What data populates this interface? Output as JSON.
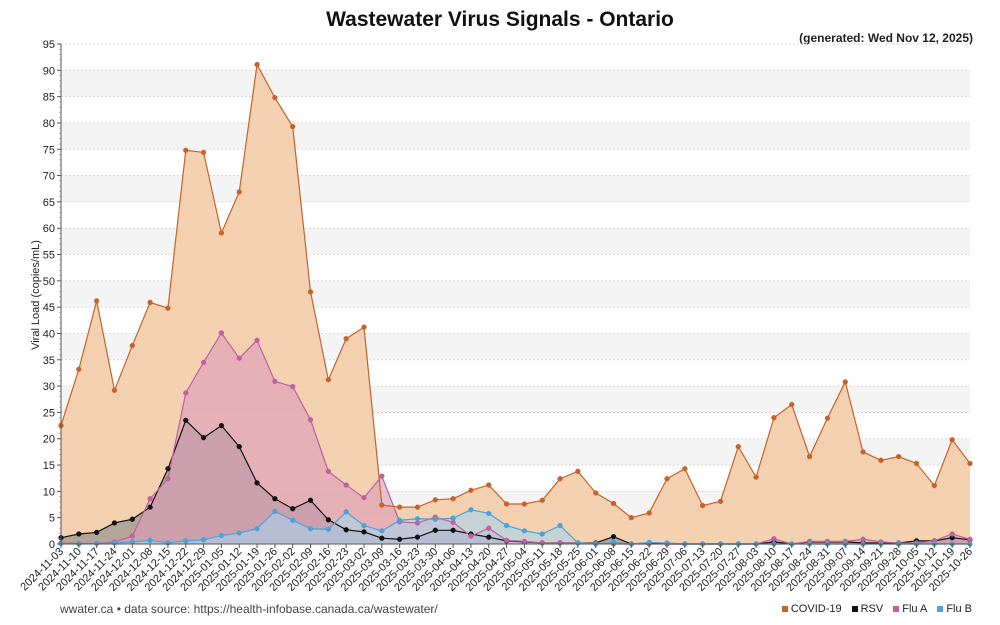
{
  "chart_data": {
    "type": "area",
    "title": "Wastewater Virus Signals - Ontario",
    "generated": "(generated: Wed Nov 12, 2025)",
    "xlabel": "",
    "ylabel": "Viral Load (copies/mL)",
    "ylim": [
      0,
      95
    ],
    "yticks": [
      0,
      5,
      10,
      15,
      20,
      25,
      30,
      35,
      40,
      45,
      50,
      55,
      60,
      65,
      70,
      75,
      80,
      85,
      90,
      95
    ],
    "categories": [
      "2024-11-03",
      "2024-11-10",
      "2024-11-17",
      "2024-11-24",
      "2024-12-01",
      "2024-12-08",
      "2024-12-15",
      "2024-12-22",
      "2024-12-29",
      "2025-01-05",
      "2025-01-12",
      "2025-01-19",
      "2025-01-26",
      "2025-02-02",
      "2025-02-09",
      "2025-02-16",
      "2025-02-23",
      "2025-03-02",
      "2025-03-09",
      "2025-03-16",
      "2025-03-23",
      "2025-03-30",
      "2025-04-06",
      "2025-04-13",
      "2025-04-20",
      "2025-04-27",
      "2025-05-04",
      "2025-05-11",
      "2025-05-18",
      "2025-05-25",
      "2025-06-01",
      "2025-06-08",
      "2025-06-15",
      "2025-06-22",
      "2025-06-29",
      "2025-07-06",
      "2025-07-13",
      "2025-07-20",
      "2025-07-27",
      "2025-08-03",
      "2025-08-10",
      "2025-08-17",
      "2025-08-24",
      "2025-08-31",
      "2025-09-07",
      "2025-09-14",
      "2025-09-21",
      "2025-09-28",
      "2025-10-05",
      "2025-10-12",
      "2025-10-19",
      "2025-10-26"
    ],
    "series": [
      {
        "name": "COVID-19",
        "color": "#c8622a",
        "fill": "#f2cca9",
        "values": [
          22.5,
          33.2,
          46.2,
          29.2,
          37.7,
          45.9,
          44.8,
          74.8,
          74.4,
          59.1,
          66.9,
          91.1,
          84.8,
          79.3,
          47.9,
          31.2,
          39.0,
          41.2,
          7.4,
          7.0,
          7.0,
          8.4,
          8.6,
          10.2,
          11.2,
          7.6,
          7.6,
          8.3,
          12.4,
          13.8,
          9.7,
          7.7,
          5.0,
          5.9,
          12.4,
          14.3,
          7.3,
          8.1,
          18.5,
          12.7,
          24.0,
          26.5,
          16.6,
          23.9,
          30.8,
          17.5,
          15.9,
          16.6,
          15.3,
          11.1,
          19.8,
          15.3
        ]
      },
      {
        "name": "RSV",
        "color": "#111111",
        "fill": "#888888",
        "values": [
          1.2,
          1.9,
          2.2,
          4.0,
          4.7,
          7.0,
          14.3,
          23.5,
          20.2,
          22.5,
          18.5,
          11.6,
          8.6,
          6.7,
          8.3,
          4.6,
          2.7,
          2.3,
          1.1,
          0.9,
          1.3,
          2.6,
          2.6,
          1.9,
          1.3,
          0.6,
          0.4,
          0.2,
          0.2,
          0.2,
          0.2,
          1.4,
          0.0,
          0.2,
          0.0,
          0.0,
          0.0,
          0.0,
          0.0,
          0.0,
          0.4,
          0.0,
          0.4,
          0.4,
          0.4,
          0.2,
          0.2,
          0.2,
          0.6,
          0.6,
          1.2,
          0.8
        ]
      },
      {
        "name": "Flu A",
        "color": "#c060a0",
        "fill": "#dc9bb9",
        "values": [
          0.2,
          0.1,
          0.1,
          0.4,
          1.5,
          8.6,
          12.4,
          28.7,
          34.5,
          40.1,
          35.3,
          38.7,
          30.9,
          29.9,
          23.6,
          13.8,
          11.2,
          8.8,
          12.9,
          4.2,
          4.0,
          5.1,
          4.1,
          1.5,
          3.0,
          0.7,
          0.5,
          0.2,
          0.2,
          0.2,
          0.1,
          0.0,
          0.0,
          0.0,
          0.0,
          0.0,
          0.0,
          0.0,
          0.0,
          0.0,
          1.0,
          0.0,
          0.5,
          0.5,
          0.5,
          0.9,
          0.4,
          0.2,
          0.2,
          0.6,
          1.9,
          0.9
        ]
      },
      {
        "name": "Flu B",
        "color": "#4aa3d8",
        "fill": "#a8d4ec",
        "values": [
          0.1,
          0.0,
          0.1,
          0.2,
          0.4,
          0.7,
          0.2,
          0.6,
          0.8,
          1.6,
          2.1,
          2.9,
          6.2,
          4.5,
          2.9,
          2.8,
          6.1,
          3.5,
          2.5,
          4.5,
          4.8,
          4.7,
          4.9,
          6.5,
          5.8,
          3.5,
          2.5,
          1.9,
          3.5,
          0.2,
          0.0,
          0.3,
          0.0,
          0.3,
          0.2,
          0.0,
          0.0,
          0.0,
          0.0,
          0.0,
          0.0,
          0.0,
          0.0,
          0.0,
          0.0,
          0.0,
          0.0,
          0.0,
          0.0,
          0.0,
          0.0,
          0.0
        ]
      }
    ],
    "legend_position": "bottom-right"
  },
  "footer": {
    "source": "wwater.ca • data source: https://health-infobase.canada.ca/wastewater/"
  },
  "legend": {
    "items": [
      {
        "label": "COVID-19",
        "color": "#c8622a"
      },
      {
        "label": "RSV",
        "color": "#111111"
      },
      {
        "label": "Flu A",
        "color": "#c060a0"
      },
      {
        "label": "Flu B",
        "color": "#4aa3d8"
      }
    ]
  }
}
